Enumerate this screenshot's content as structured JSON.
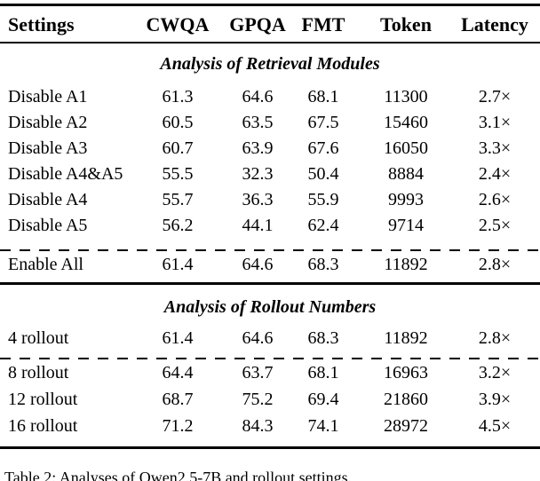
{
  "table": {
    "columns": [
      "Settings",
      "CWQA",
      "GPQA",
      "FMT",
      "Token",
      "Latency"
    ],
    "sections": [
      {
        "title": "Analysis of Retrieval Modules",
        "rows": [
          [
            "Disable A1",
            "61.3",
            "64.6",
            "68.1",
            "11300",
            "2.7×"
          ],
          [
            "Disable A2",
            "60.5",
            "63.5",
            "67.5",
            "15460",
            "3.1×"
          ],
          [
            "Disable A3",
            "60.7",
            "63.9",
            "67.6",
            "16050",
            "3.3×"
          ],
          [
            "Disable A4&A5",
            "55.5",
            "32.3",
            "50.4",
            "8884",
            "2.4×"
          ],
          [
            "Disable A4",
            "55.7",
            "36.3",
            "55.9",
            "9993",
            "2.6×"
          ],
          [
            "Disable A5",
            "56.2",
            "44.1",
            "62.4",
            "9714",
            "2.5×"
          ],
          [
            "Enable All",
            "61.4",
            "64.6",
            "68.3",
            "11892",
            "2.8×"
          ]
        ]
      },
      {
        "title": "Analysis of Rollout Numbers",
        "rows": [
          [
            "4 rollout",
            "61.4",
            "64.6",
            "68.3",
            "11892",
            "2.8×"
          ],
          [
            "8 rollout",
            "64.4",
            "63.7",
            "68.1",
            "16963",
            "3.2×"
          ],
          [
            "12 rollout",
            "68.7",
            "75.2",
            "69.4",
            "21860",
            "3.9×"
          ],
          [
            "16 rollout",
            "71.2",
            "84.3",
            "74.1",
            "28972",
            "4.5×"
          ]
        ]
      }
    ],
    "caption": "Table 2: Analyses of Qwen2.5-7B and rollout settings."
  }
}
